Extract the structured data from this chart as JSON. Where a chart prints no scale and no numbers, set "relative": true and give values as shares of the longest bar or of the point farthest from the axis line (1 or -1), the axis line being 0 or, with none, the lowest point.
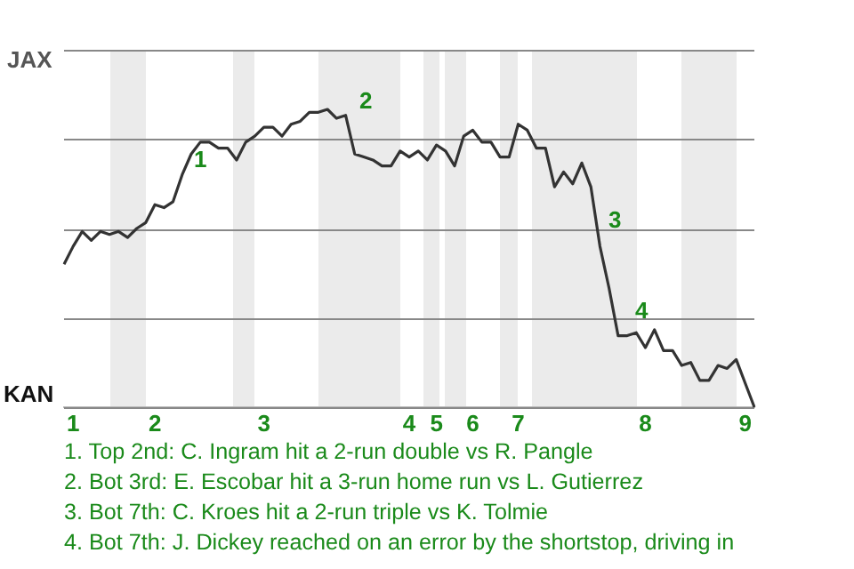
{
  "chart_data": {
    "type": "line",
    "relative": true,
    "categories": [
      null,
      "1",
      null,
      null,
      null,
      null,
      null,
      null,
      null,
      null,
      "2",
      null,
      null,
      null,
      null,
      null,
      null,
      null,
      null,
      null,
      null,
      null,
      "3",
      null,
      null,
      null,
      null,
      null,
      null,
      null,
      null,
      null,
      null,
      null,
      null,
      null,
      null,
      null,
      "4",
      null,
      null,
      "5",
      null,
      null,
      null,
      "6",
      null,
      null,
      null,
      null,
      "7",
      null,
      null,
      null,
      null,
      null,
      null,
      null,
      null,
      null,
      null,
      null,
      null,
      null,
      "8",
      null,
      null,
      null,
      null,
      null,
      null,
      null,
      null,
      null,
      null,
      "9",
      null
    ],
    "series": [
      {
        "color": "#333333",
        "values": [
          0.48,
          0.54,
          0.59,
          0.56,
          0.59,
          0.58,
          0.59,
          0.57,
          0.6,
          0.62,
          0.68,
          0.67,
          0.69,
          0.78,
          0.85,
          0.89,
          0.89,
          0.87,
          0.87,
          0.83,
          0.89,
          0.91,
          0.94,
          0.94,
          0.91,
          0.95,
          0.96,
          0.99,
          0.99,
          1,
          0.97,
          0.98,
          0.85,
          0.84,
          0.83,
          0.81,
          0.81,
          0.86,
          0.84,
          0.86,
          0.83,
          0.88,
          0.86,
          0.81,
          0.91,
          0.93,
          0.89,
          0.89,
          0.84,
          0.84,
          0.95,
          0.93,
          0.87,
          0.87,
          0.74,
          0.79,
          0.75,
          0.82,
          0.74,
          0.54,
          0.4,
          0.24,
          0.24,
          0.25,
          0.2,
          0.26,
          0.19,
          0.19,
          0.14,
          0.15,
          0.09,
          0.09,
          0.14,
          0.13,
          0.16,
          0.08,
          0
        ]
      }
    ],
    "grid": "y",
    "marker": "none",
    "line_style": "solid",
    "legend": false,
    "annotations": [
      "JAX",
      "KAN",
      "1",
      "2",
      "3",
      "4",
      "1. Top 2nd: C. Ingram hit a 2-run double vs R. Pangle",
      "2. Bot 3rd: E. Escobar hit a 3-run home run vs L. Gutierrez",
      "3. Bot 7th: C. Kroes hit a 2-run triple vs K. Tolmie",
      "4. Bot 7th: J. Dickey reached on an error by the shortstop, driving in"
    ]
  }
}
